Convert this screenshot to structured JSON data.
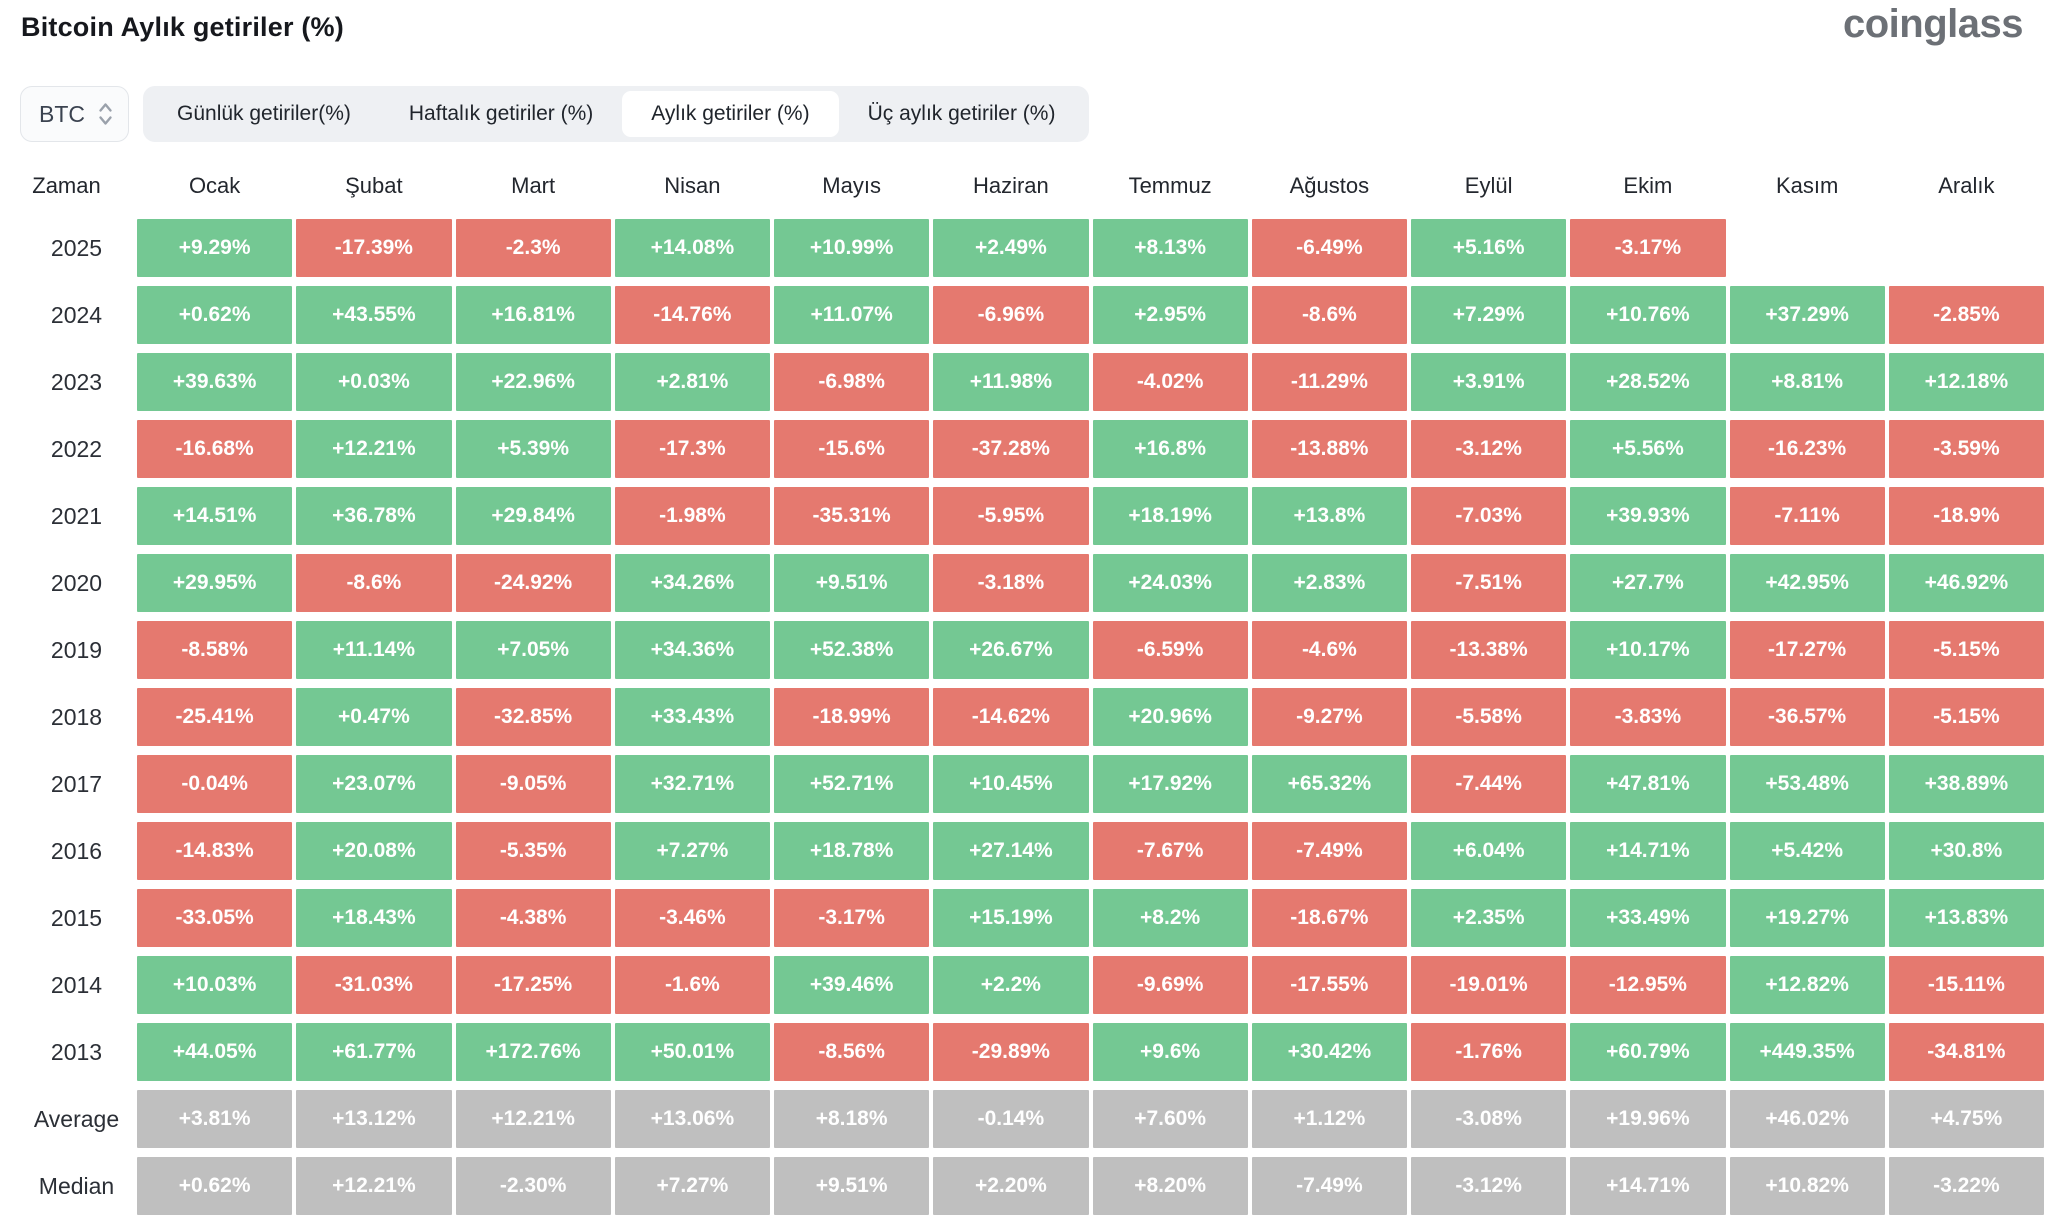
{
  "page": {
    "title": "Bitcoin Aylık getiriler (%)",
    "logo": "coinglass"
  },
  "controls": {
    "coin_selector": {
      "value": "BTC",
      "icon": "chevron-up-down-icon"
    },
    "tabs": [
      {
        "label": "Günlük getiriler(%)",
        "active": false
      },
      {
        "label": "Haftalık getiriler (%)",
        "active": false
      },
      {
        "label": "Aylık getiriler (%)",
        "active": true
      },
      {
        "label": "Üç aylık getiriler (%)",
        "active": false
      }
    ]
  },
  "colors": {
    "positive": "#74c893",
    "negative": "#e5796f",
    "summary": "#bfbfbf",
    "tab_bar_bg": "#eef0f3",
    "active_tab_bg": "#ffffff"
  },
  "table": {
    "columns": [
      "Zaman",
      "Ocak",
      "Şubat",
      "Mart",
      "Nisan",
      "Mayıs",
      "Haziran",
      "Temmuz",
      "Ağustos",
      "Eylül",
      "Ekim",
      "Kasım",
      "Aralık"
    ],
    "rows": [
      {
        "label": "2025",
        "type": "year",
        "values": [
          "+9.29%",
          "-17.39%",
          "-2.3%",
          "+14.08%",
          "+10.99%",
          "+2.49%",
          "+8.13%",
          "-6.49%",
          "+5.16%",
          "-3.17%",
          "",
          ""
        ]
      },
      {
        "label": "2024",
        "type": "year",
        "values": [
          "+0.62%",
          "+43.55%",
          "+16.81%",
          "-14.76%",
          "+11.07%",
          "-6.96%",
          "+2.95%",
          "-8.6%",
          "+7.29%",
          "+10.76%",
          "+37.29%",
          "-2.85%"
        ]
      },
      {
        "label": "2023",
        "type": "year",
        "values": [
          "+39.63%",
          "+0.03%",
          "+22.96%",
          "+2.81%",
          "-6.98%",
          "+11.98%",
          "-4.02%",
          "-11.29%",
          "+3.91%",
          "+28.52%",
          "+8.81%",
          "+12.18%"
        ]
      },
      {
        "label": "2022",
        "type": "year",
        "values": [
          "-16.68%",
          "+12.21%",
          "+5.39%",
          "-17.3%",
          "-15.6%",
          "-37.28%",
          "+16.8%",
          "-13.88%",
          "-3.12%",
          "+5.56%",
          "-16.23%",
          "-3.59%"
        ]
      },
      {
        "label": "2021",
        "type": "year",
        "values": [
          "+14.51%",
          "+36.78%",
          "+29.84%",
          "-1.98%",
          "-35.31%",
          "-5.95%",
          "+18.19%",
          "+13.8%",
          "-7.03%",
          "+39.93%",
          "-7.11%",
          "-18.9%"
        ]
      },
      {
        "label": "2020",
        "type": "year",
        "values": [
          "+29.95%",
          "-8.6%",
          "-24.92%",
          "+34.26%",
          "+9.51%",
          "-3.18%",
          "+24.03%",
          "+2.83%",
          "-7.51%",
          "+27.7%",
          "+42.95%",
          "+46.92%"
        ]
      },
      {
        "label": "2019",
        "type": "year",
        "values": [
          "-8.58%",
          "+11.14%",
          "+7.05%",
          "+34.36%",
          "+52.38%",
          "+26.67%",
          "-6.59%",
          "-4.6%",
          "-13.38%",
          "+10.17%",
          "-17.27%",
          "-5.15%"
        ]
      },
      {
        "label": "2018",
        "type": "year",
        "values": [
          "-25.41%",
          "+0.47%",
          "-32.85%",
          "+33.43%",
          "-18.99%",
          "-14.62%",
          "+20.96%",
          "-9.27%",
          "-5.58%",
          "-3.83%",
          "-36.57%",
          "-5.15%"
        ]
      },
      {
        "label": "2017",
        "type": "year",
        "values": [
          "-0.04%",
          "+23.07%",
          "-9.05%",
          "+32.71%",
          "+52.71%",
          "+10.45%",
          "+17.92%",
          "+65.32%",
          "-7.44%",
          "+47.81%",
          "+53.48%",
          "+38.89%"
        ]
      },
      {
        "label": "2016",
        "type": "year",
        "values": [
          "-14.83%",
          "+20.08%",
          "-5.35%",
          "+7.27%",
          "+18.78%",
          "+27.14%",
          "-7.67%",
          "-7.49%",
          "+6.04%",
          "+14.71%",
          "+5.42%",
          "+30.8%"
        ]
      },
      {
        "label": "2015",
        "type": "year",
        "values": [
          "-33.05%",
          "+18.43%",
          "-4.38%",
          "-3.46%",
          "-3.17%",
          "+15.19%",
          "+8.2%",
          "-18.67%",
          "+2.35%",
          "+33.49%",
          "+19.27%",
          "+13.83%"
        ]
      },
      {
        "label": "2014",
        "type": "year",
        "values": [
          "+10.03%",
          "-31.03%",
          "-17.25%",
          "-1.6%",
          "+39.46%",
          "+2.2%",
          "-9.69%",
          "-17.55%",
          "-19.01%",
          "-12.95%",
          "+12.82%",
          "-15.11%"
        ]
      },
      {
        "label": "2013",
        "type": "year",
        "values": [
          "+44.05%",
          "+61.77%",
          "+172.76%",
          "+50.01%",
          "-8.56%",
          "-29.89%",
          "+9.6%",
          "+30.42%",
          "-1.76%",
          "+60.79%",
          "+449.35%",
          "-34.81%"
        ]
      },
      {
        "label": "Average",
        "type": "summary",
        "values": [
          "+3.81%",
          "+13.12%",
          "+12.21%",
          "+13.06%",
          "+8.18%",
          "-0.14%",
          "+7.60%",
          "+1.12%",
          "-3.08%",
          "+19.96%",
          "+46.02%",
          "+4.75%"
        ]
      },
      {
        "label": "Median",
        "type": "summary",
        "values": [
          "+0.62%",
          "+12.21%",
          "-2.30%",
          "+7.27%",
          "+9.51%",
          "+2.20%",
          "+8.20%",
          "-7.49%",
          "-3.12%",
          "+14.71%",
          "+10.82%",
          "-3.22%"
        ]
      }
    ]
  }
}
